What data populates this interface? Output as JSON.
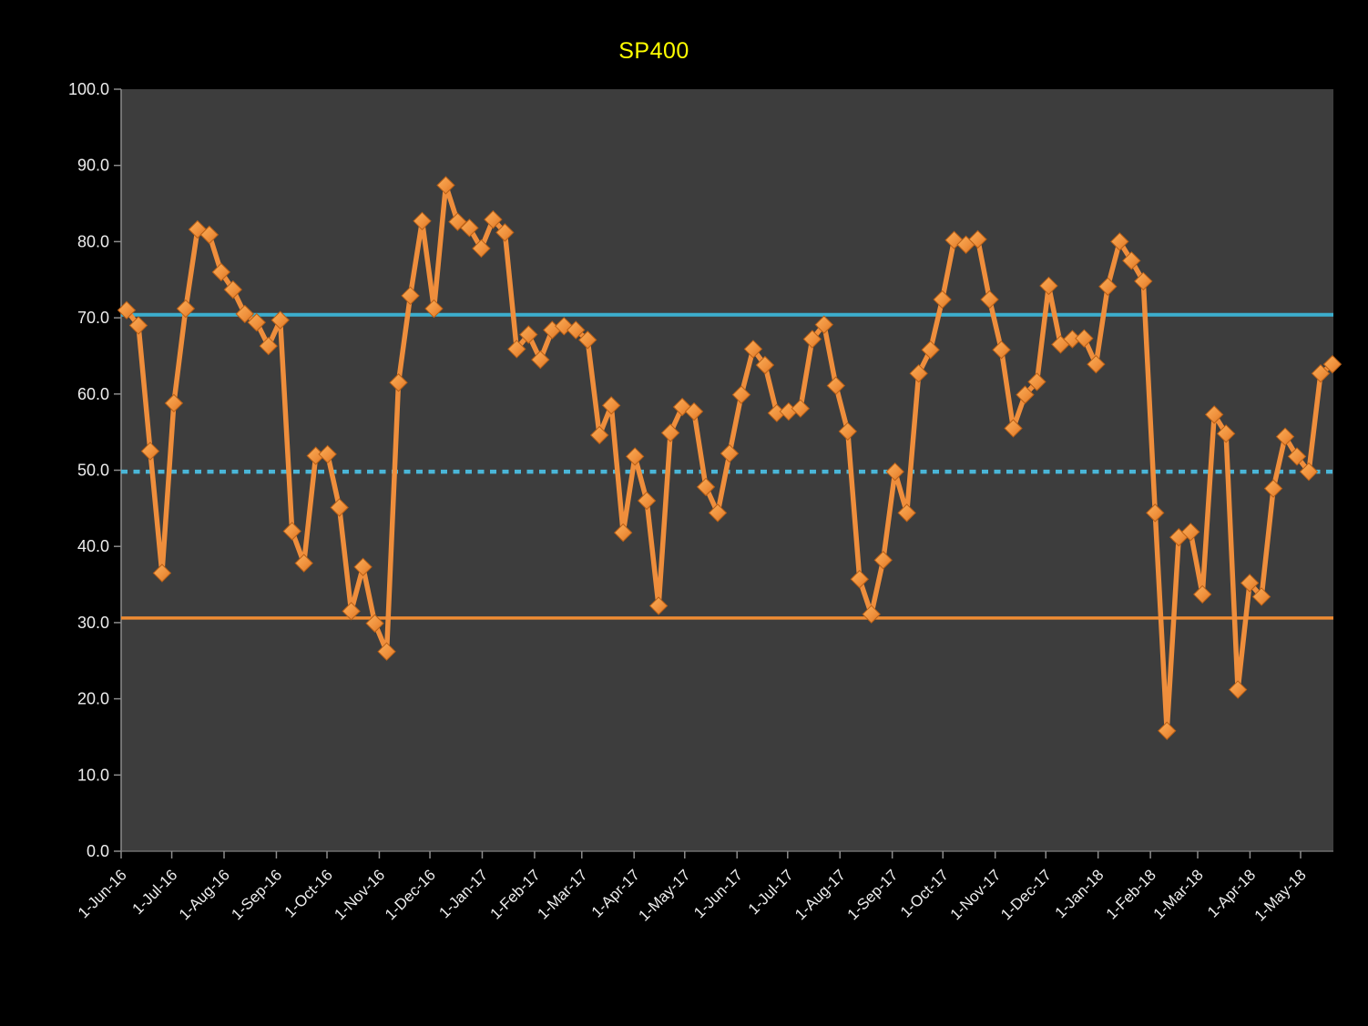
{
  "chart": {
    "title": "SP400",
    "title_color": "#FFFF00",
    "background_color": "#000000",
    "plot_background_color": "#3D3D3D",
    "axis_text_color": "#EDEDED"
  },
  "chart_data": {
    "type": "line",
    "title": "SP400",
    "xlabel": "",
    "ylabel": "",
    "ylim": [
      0,
      100
    ],
    "y_tick_step": 10,
    "y_tick_labels": [
      "0.0",
      "10.0",
      "20.0",
      "30.0",
      "40.0",
      "50.0",
      "60.0",
      "70.0",
      "80.0",
      "90.0",
      "100.0"
    ],
    "x_tick_labels": [
      "1-Jun-16",
      "1-Jul-16",
      "1-Aug-16",
      "1-Sep-16",
      "1-Oct-16",
      "1-Nov-16",
      "1-Dec-16",
      "1-Jan-17",
      "1-Feb-17",
      "1-Mar-17",
      "1-Apr-17",
      "1-May-17",
      "1-Jun-17",
      "1-Jul-17",
      "1-Aug-17",
      "1-Sep-17",
      "1-Oct-17",
      "1-Nov-17",
      "1-Dec-17",
      "1-Jan-18",
      "1-Feb-18",
      "1-Mar-18",
      "1-Apr-18",
      "1-May-18"
    ],
    "gridlines": "none",
    "legend": "none",
    "series": [
      {
        "name": "SP400",
        "frequency": "weekly",
        "marker": "diamond",
        "line_color": "#EF8E3C",
        "marker_fill_light": "#FBAE58",
        "marker_fill_dark": "#DB731F",
        "marker_stroke": "#B95F16",
        "values": [
          71.0,
          69.0,
          52.5,
          36.5,
          58.8,
          71.2,
          81.6,
          80.9,
          76.0,
          73.7,
          70.5,
          69.4,
          66.3,
          69.7,
          42.0,
          37.8,
          51.9,
          52.1,
          45.1,
          31.5,
          37.3,
          29.9,
          26.2,
          61.5,
          72.9,
          82.7,
          71.2,
          87.4,
          82.6,
          81.8,
          79.1,
          82.9,
          81.2,
          65.9,
          67.8,
          64.5,
          68.4,
          68.9,
          68.4,
          67.1,
          54.6,
          58.5,
          41.8,
          51.8,
          46.0,
          32.2,
          54.9,
          58.3,
          57.7,
          47.8,
          44.4,
          52.2,
          59.9,
          65.9,
          63.8,
          57.5,
          57.7,
          58.1,
          67.2,
          69.1,
          61.1,
          55.1,
          35.7,
          31.1,
          38.2,
          49.8,
          44.4,
          62.7,
          65.8,
          72.4,
          80.2,
          79.6,
          80.3,
          72.4,
          65.8,
          55.5,
          59.9,
          61.6,
          74.2,
          66.5,
          67.2,
          67.3,
          63.9,
          74.1,
          80.0,
          77.5,
          74.8,
          44.4,
          15.8,
          41.2,
          41.9,
          33.7,
          57.3,
          54.8,
          21.2,
          35.2,
          33.4,
          47.6,
          54.4,
          51.8,
          49.8,
          62.7,
          63.9
        ]
      }
    ],
    "reference_lines": [
      {
        "name": "upper-band",
        "value": 70.4,
        "style": "solid",
        "color": "#3CAECE",
        "width": 4
      },
      {
        "name": "mid-band",
        "value": 49.8,
        "style": "dotted",
        "color": "#4AB6D8",
        "width": 4.5
      },
      {
        "name": "lower-band",
        "value": 30.6,
        "style": "solid",
        "color": "#EE8B33",
        "width": 3.5
      }
    ]
  }
}
